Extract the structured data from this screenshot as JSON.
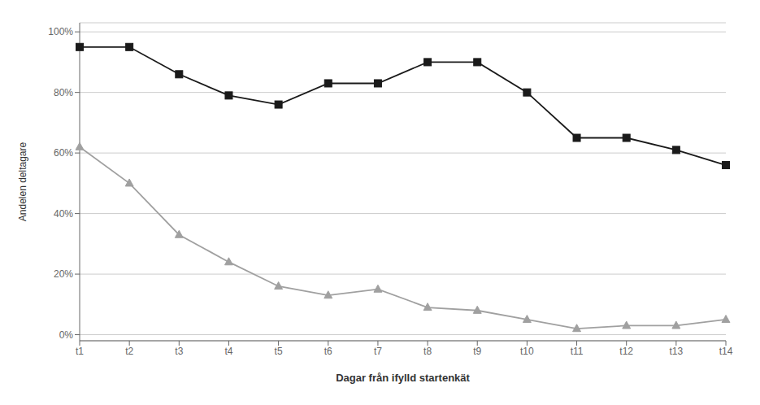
{
  "chart_data": {
    "type": "line",
    "xlabel": "Dagar från ifylld startenkät",
    "ylabel": "Andelen deltagare",
    "categories": [
      "t1",
      "t2",
      "t3",
      "t4",
      "t5",
      "t6",
      "t7",
      "t8",
      "t9",
      "t10",
      "t11",
      "t12",
      "t13",
      "t14"
    ],
    "series": [
      {
        "color": "#1a1a1a",
        "marker": "square",
        "values": [
          0.95,
          0.95,
          0.86,
          0.79,
          0.76,
          0.83,
          0.83,
          0.9,
          0.9,
          0.8,
          0.65,
          0.65,
          0.61,
          0.56
        ]
      },
      {
        "color": "#a0a0a0",
        "marker": "triangle",
        "values": [
          0.62,
          0.5,
          0.33,
          0.24,
          0.16,
          0.13,
          0.15,
          0.09,
          0.08,
          0.05,
          0.02,
          0.03,
          0.03,
          0.05
        ]
      }
    ],
    "ylim": [
      -0.02,
      1.03
    ],
    "yticks": [
      {
        "value": 0.0,
        "label": "0%"
      },
      {
        "value": 0.2,
        "label": "20%"
      },
      {
        "value": 0.4,
        "label": "40%"
      },
      {
        "value": 0.6,
        "label": "60%"
      },
      {
        "value": 0.8,
        "label": "80%"
      },
      {
        "value": 1.0,
        "label": "100%"
      }
    ],
    "grid": true
  }
}
